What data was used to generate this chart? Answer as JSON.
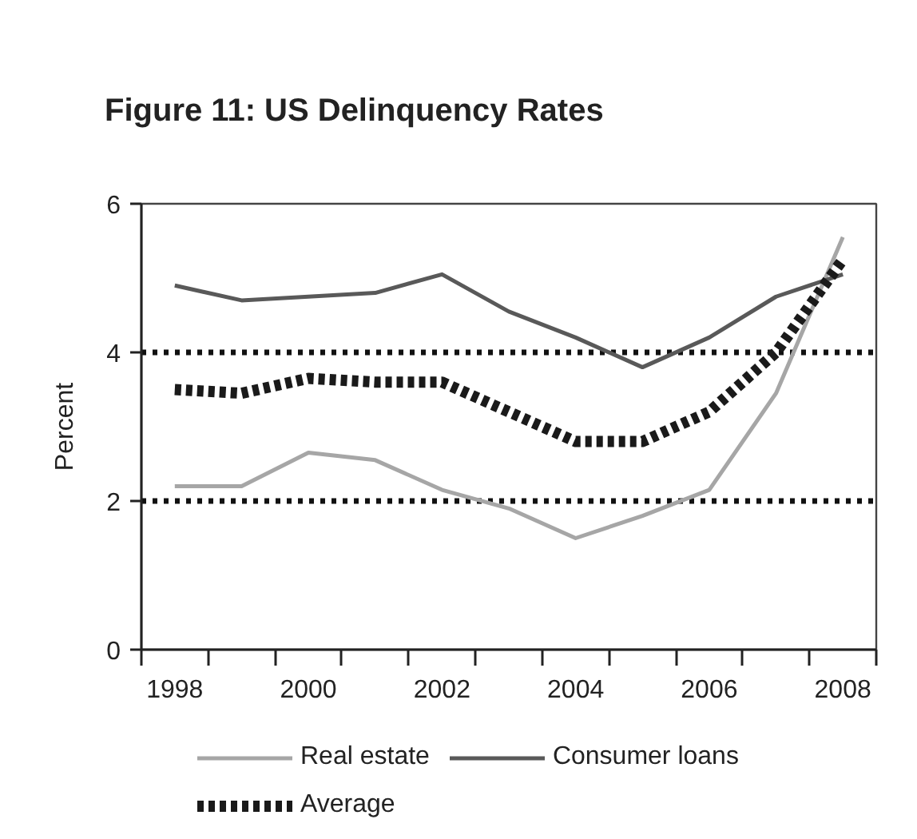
{
  "chart_data": {
    "type": "line",
    "title": "Figure 11: US Delinquency Rates",
    "ylabel": "Percent",
    "categories": [
      "1998",
      null,
      "2000",
      null,
      "2002",
      null,
      "2004",
      null,
      "2006",
      null,
      "2008"
    ],
    "series": [
      {
        "name": "Real estate",
        "color": "#a6a6a6",
        "values": [
          2.2,
          2.2,
          2.65,
          2.55,
          2.15,
          1.9,
          1.5,
          1.8,
          2.15,
          3.45,
          5.55
        ]
      },
      {
        "name": "Consumer loans",
        "color": "#595959",
        "values": [
          4.9,
          4.7,
          4.75,
          4.8,
          5.05,
          4.55,
          4.2,
          3.8,
          4.2,
          4.75,
          5.05
        ]
      },
      {
        "name": "Average",
        "color": "#1a1a1a",
        "line_style": "dashed",
        "values": [
          3.5,
          3.45,
          3.65,
          3.6,
          3.6,
          3.2,
          2.8,
          2.8,
          3.2,
          4.0,
          5.25
        ]
      }
    ],
    "ylim": [
      0,
      6
    ],
    "yticks": [
      0,
      2,
      4,
      6
    ],
    "grid": "y",
    "legend": "bottom"
  }
}
